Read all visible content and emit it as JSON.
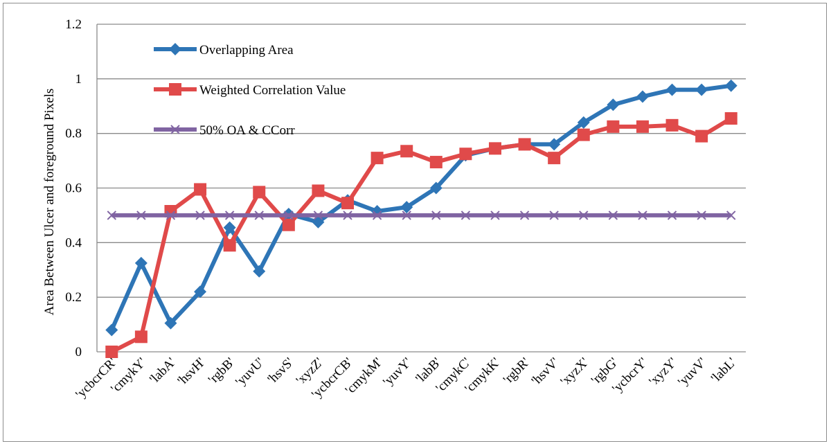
{
  "chart_data": {
    "type": "line",
    "ylabel": "Area Between Ulcer and foreground Pixels",
    "ylim": [
      0,
      1.2
    ],
    "yticks": [
      "0",
      "0.2",
      "0.4",
      "0.6",
      "0.8",
      "1",
      "1.2"
    ],
    "grid": true,
    "legend_position": "top-left (inside plot)",
    "categories": [
      "'ycbcrCR'",
      "'cmykY'",
      "'labA'",
      "'hsvH'",
      "'rgbB'",
      "'yuvU'",
      "'hsvS'",
      "'xyzZ'",
      "'ycbcrCB'",
      "'cmykM'",
      "'yuvY'",
      "'labB'",
      "'cmykC'",
      "'cmykK'",
      "'rgbR'",
      "'hsvV'",
      "'xyzX'",
      "'rgbG'",
      "'ycbcrY'",
      "'xyzY'",
      "'yuvV'",
      "'labL'"
    ],
    "series": [
      {
        "name": "Overlapping Area",
        "color": "#2e75b6",
        "marker": "diamond",
        "values": [
          0.08,
          0.325,
          0.105,
          0.22,
          0.455,
          0.295,
          0.505,
          0.475,
          0.555,
          0.515,
          0.53,
          0.6,
          0.72,
          0.745,
          0.76,
          0.76,
          0.84,
          0.905,
          0.935,
          0.96,
          0.96,
          0.975
        ]
      },
      {
        "name": "Weighted Correlation Value",
        "color": "#e04a4a",
        "marker": "square",
        "values": [
          0.0,
          0.055,
          0.515,
          0.595,
          0.39,
          0.585,
          0.465,
          0.59,
          0.545,
          0.71,
          0.735,
          0.695,
          0.725,
          0.745,
          0.76,
          0.71,
          0.795,
          0.825,
          0.825,
          0.83,
          0.79,
          0.855
        ]
      },
      {
        "name": "50% OA & CCorr",
        "color": "#8064a2",
        "marker": "x",
        "values": [
          0.5,
          0.5,
          0.5,
          0.5,
          0.5,
          0.5,
          0.5,
          0.5,
          0.5,
          0.5,
          0.5,
          0.5,
          0.5,
          0.5,
          0.5,
          0.5,
          0.5,
          0.5,
          0.5,
          0.5,
          0.5,
          0.5
        ]
      }
    ]
  }
}
